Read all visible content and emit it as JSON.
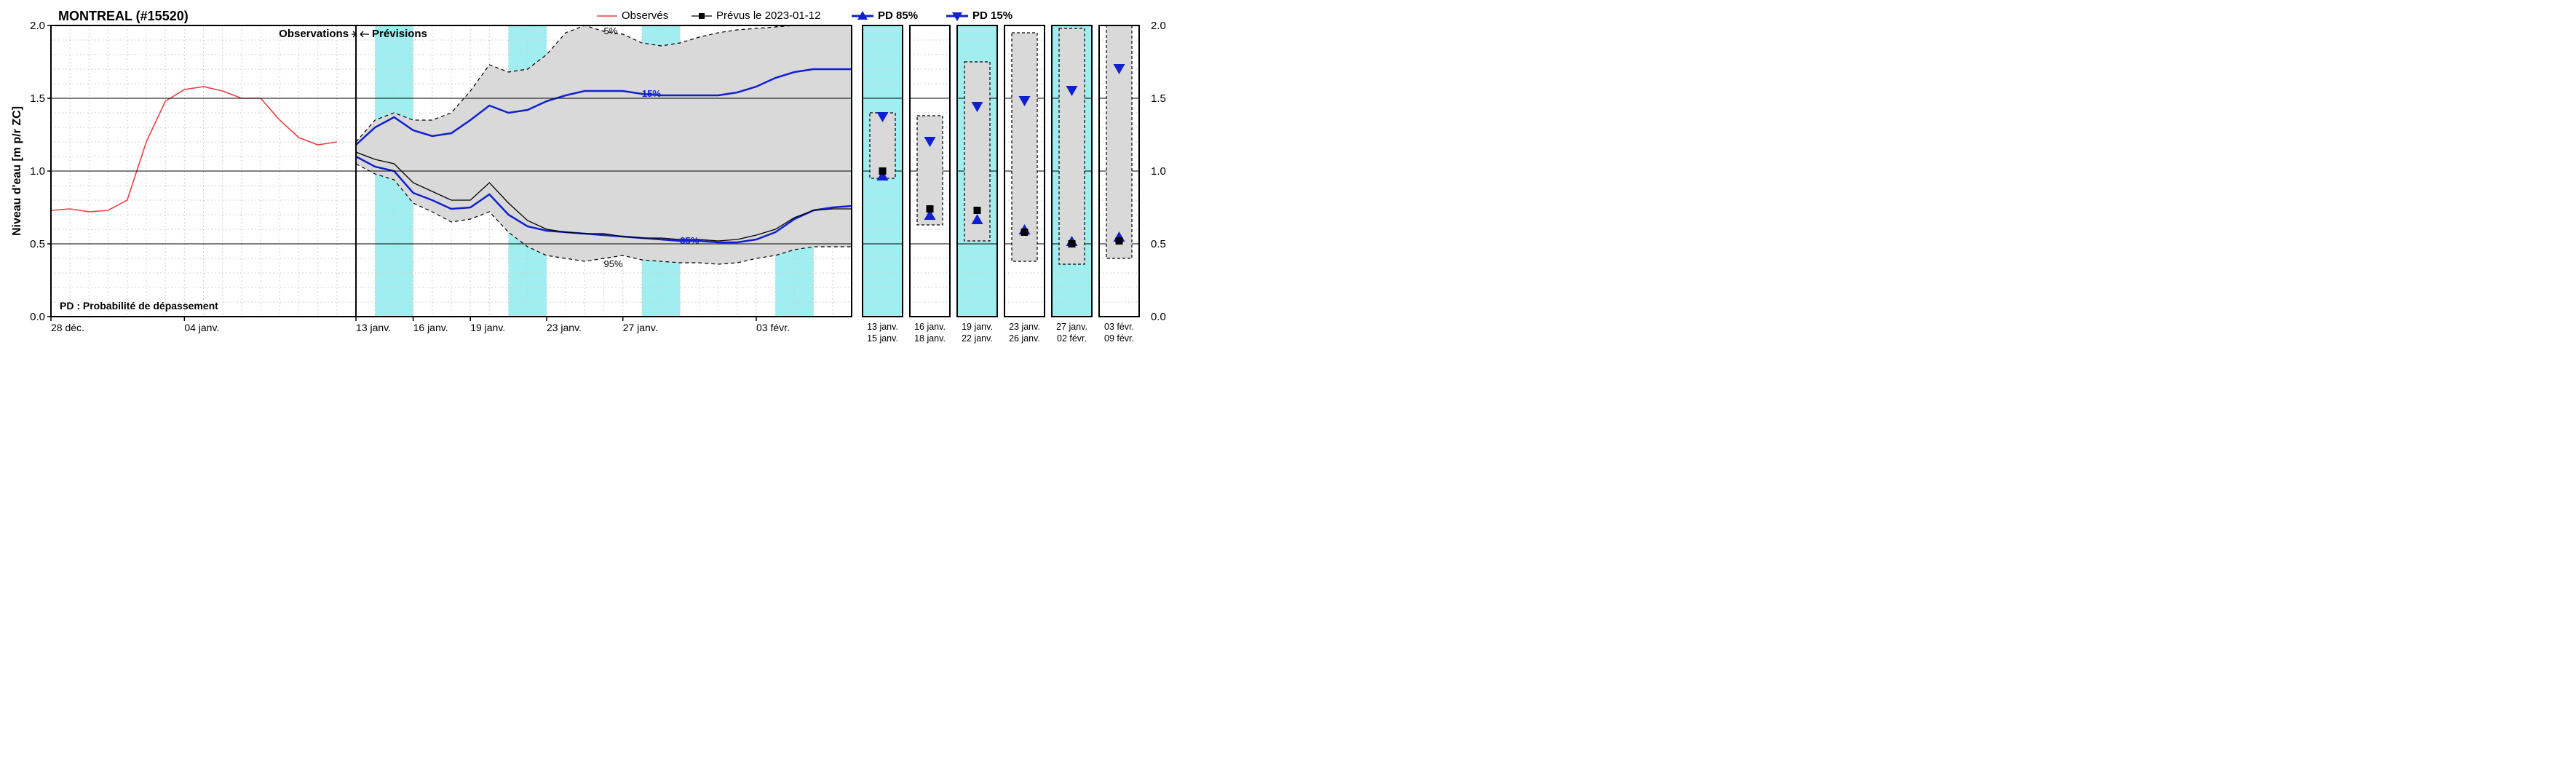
{
  "title": "MONTREAL (#15520)",
  "ylabel": "Niveau d'eau [m p/r ZC]",
  "annotation_obs": "Observations",
  "annotation_prev": "Prévisions",
  "pd_note": "PD : Probabilité de dépassement",
  "legend": {
    "observed": "Observés",
    "forecast": "Prévus le 2023-01-12",
    "pd85": "PD 85%",
    "pd15": "PD 15%"
  },
  "pct_labels": {
    "p5": "5%",
    "p15": "15%",
    "p85": "85%",
    "p95": "95%"
  },
  "main": {
    "type": "line",
    "x_domain": [
      0,
      42
    ],
    "x_divider": 16,
    "y_domain": [
      0.0,
      2.0
    ],
    "y_ticks": [
      0.0,
      0.5,
      1.0,
      1.5,
      2.0
    ],
    "y_minor_step": 0.1,
    "weekend_bands": [
      [
        17,
        19
      ],
      [
        24,
        26
      ],
      [
        31,
        33
      ],
      [
        38,
        40
      ]
    ],
    "x_ticks_major": [
      {
        "x": 0,
        "label": "28 déc."
      },
      {
        "x": 7,
        "label": "04 janv."
      },
      {
        "x": 16,
        "label": "13 janv."
      },
      {
        "x": 19,
        "label": "16 janv."
      },
      {
        "x": 22,
        "label": "19 janv."
      },
      {
        "x": 26,
        "label": "23 janv."
      },
      {
        "x": 30,
        "label": "27 janv."
      },
      {
        "x": 37,
        "label": "03 févr."
      }
    ],
    "x_minor_every": 1,
    "observed_color": "#e84142",
    "forecast_color": "#000000",
    "pd_color": "#1020d0",
    "fan_fill": "#d9d9d9",
    "fan_edge": "#000000",
    "weekend_fill": "#a0eef0",
    "minor_grid": "#d0d0d0",
    "major_grid": "#000000",
    "background": "#ffffff",
    "observed": [
      [
        0,
        0.73
      ],
      [
        1,
        0.74
      ],
      [
        2,
        0.72
      ],
      [
        3,
        0.73
      ],
      [
        4,
        0.8
      ],
      [
        5,
        1.2
      ],
      [
        6,
        1.48
      ],
      [
        7,
        1.56
      ],
      [
        8,
        1.58
      ],
      [
        9,
        1.55
      ],
      [
        10,
        1.5
      ],
      [
        11,
        1.5
      ],
      [
        12,
        1.35
      ],
      [
        13,
        1.23
      ],
      [
        14,
        1.18
      ],
      [
        15,
        1.2
      ]
    ],
    "forecast_median": [
      [
        16,
        1.13
      ],
      [
        17,
        1.08
      ],
      [
        18,
        1.05
      ],
      [
        19,
        0.92
      ],
      [
        20,
        0.86
      ],
      [
        21,
        0.8
      ],
      [
        22,
        0.8
      ],
      [
        23,
        0.92
      ],
      [
        24,
        0.78
      ],
      [
        25,
        0.66
      ],
      [
        26,
        0.6
      ],
      [
        27,
        0.58
      ],
      [
        28,
        0.57
      ],
      [
        29,
        0.57
      ],
      [
        30,
        0.55
      ],
      [
        31,
        0.54
      ],
      [
        32,
        0.54
      ],
      [
        33,
        0.53
      ],
      [
        34,
        0.53
      ],
      [
        35,
        0.52
      ],
      [
        36,
        0.53
      ],
      [
        37,
        0.56
      ],
      [
        38,
        0.6
      ],
      [
        39,
        0.68
      ],
      [
        40,
        0.73
      ],
      [
        41,
        0.74
      ],
      [
        42,
        0.74
      ]
    ],
    "p5": [
      [
        16,
        1.2
      ],
      [
        17,
        1.35
      ],
      [
        18,
        1.4
      ],
      [
        19,
        1.35
      ],
      [
        20,
        1.35
      ],
      [
        21,
        1.4
      ],
      [
        22,
        1.55
      ],
      [
        23,
        1.73
      ],
      [
        24,
        1.68
      ],
      [
        25,
        1.7
      ],
      [
        26,
        1.8
      ],
      [
        27,
        1.95
      ],
      [
        28,
        2.0
      ],
      [
        29,
        1.96
      ],
      [
        30,
        1.94
      ],
      [
        31,
        1.88
      ],
      [
        32,
        1.86
      ],
      [
        33,
        1.88
      ],
      [
        34,
        1.92
      ],
      [
        35,
        1.95
      ],
      [
        36,
        1.97
      ],
      [
        37,
        1.98
      ],
      [
        38,
        1.99
      ],
      [
        39,
        2.0
      ],
      [
        40,
        2.0
      ],
      [
        41,
        2.0
      ],
      [
        42,
        2.0
      ]
    ],
    "p15": [
      [
        16,
        1.18
      ],
      [
        17,
        1.3
      ],
      [
        18,
        1.37
      ],
      [
        19,
        1.28
      ],
      [
        20,
        1.24
      ],
      [
        21,
        1.26
      ],
      [
        22,
        1.35
      ],
      [
        23,
        1.45
      ],
      [
        24,
        1.4
      ],
      [
        25,
        1.42
      ],
      [
        26,
        1.48
      ],
      [
        27,
        1.52
      ],
      [
        28,
        1.55
      ],
      [
        29,
        1.55
      ],
      [
        30,
        1.55
      ],
      [
        31,
        1.53
      ],
      [
        32,
        1.52
      ],
      [
        33,
        1.52
      ],
      [
        34,
        1.52
      ],
      [
        35,
        1.52
      ],
      [
        36,
        1.54
      ],
      [
        37,
        1.58
      ],
      [
        38,
        1.64
      ],
      [
        39,
        1.68
      ],
      [
        40,
        1.7
      ],
      [
        41,
        1.7
      ],
      [
        42,
        1.7
      ]
    ],
    "p85": [
      [
        16,
        1.1
      ],
      [
        17,
        1.03
      ],
      [
        18,
        1.0
      ],
      [
        19,
        0.85
      ],
      [
        20,
        0.8
      ],
      [
        21,
        0.74
      ],
      [
        22,
        0.75
      ],
      [
        23,
        0.84
      ],
      [
        24,
        0.7
      ],
      [
        25,
        0.62
      ],
      [
        26,
        0.59
      ],
      [
        27,
        0.58
      ],
      [
        28,
        0.57
      ],
      [
        29,
        0.56
      ],
      [
        30,
        0.55
      ],
      [
        31,
        0.54
      ],
      [
        32,
        0.53
      ],
      [
        33,
        0.52
      ],
      [
        34,
        0.52
      ],
      [
        35,
        0.51
      ],
      [
        36,
        0.51
      ],
      [
        37,
        0.53
      ],
      [
        38,
        0.58
      ],
      [
        39,
        0.67
      ],
      [
        40,
        0.73
      ],
      [
        41,
        0.75
      ],
      [
        42,
        0.76
      ]
    ],
    "p95": [
      [
        16,
        1.05
      ],
      [
        17,
        0.98
      ],
      [
        18,
        0.94
      ],
      [
        19,
        0.78
      ],
      [
        20,
        0.72
      ],
      [
        21,
        0.65
      ],
      [
        22,
        0.67
      ],
      [
        23,
        0.72
      ],
      [
        24,
        0.58
      ],
      [
        25,
        0.48
      ],
      [
        26,
        0.42
      ],
      [
        27,
        0.4
      ],
      [
        28,
        0.38
      ],
      [
        29,
        0.4
      ],
      [
        30,
        0.42
      ],
      [
        31,
        0.39
      ],
      [
        32,
        0.38
      ],
      [
        33,
        0.37
      ],
      [
        34,
        0.37
      ],
      [
        35,
        0.36
      ],
      [
        36,
        0.37
      ],
      [
        37,
        0.4
      ],
      [
        38,
        0.42
      ],
      [
        39,
        0.46
      ],
      [
        40,
        0.48
      ],
      [
        41,
        0.48
      ],
      [
        42,
        0.48
      ]
    ]
  },
  "panels": [
    {
      "label_top": "13 janv.",
      "label_bot": "15 janv.",
      "weekend": true,
      "p5": 1.4,
      "p15": 1.37,
      "median": 1.0,
      "p85": 0.97,
      "p95": 0.95
    },
    {
      "label_top": "16 janv.",
      "label_bot": "18 janv.",
      "weekend": false,
      "p5": 1.38,
      "p15": 1.2,
      "median": 0.74,
      "p85": 0.7,
      "p95": 0.63
    },
    {
      "label_top": "19 janv.",
      "label_bot": "22 janv.",
      "weekend": true,
      "p5": 1.75,
      "p15": 1.44,
      "median": 0.73,
      "p85": 0.67,
      "p95": 0.52
    },
    {
      "label_top": "23 janv.",
      "label_bot": "26 janv.",
      "weekend": false,
      "p5": 1.95,
      "p15": 1.48,
      "median": 0.58,
      "p85": 0.6,
      "p95": 0.38
    },
    {
      "label_top": "27 janv.",
      "label_bot": "02 févr.",
      "weekend": true,
      "p5": 1.98,
      "p15": 1.55,
      "median": 0.5,
      "p85": 0.52,
      "p95": 0.36
    },
    {
      "label_top": "03 févr.",
      "label_bot": "09 févr.",
      "weekend": false,
      "p5": 2.0,
      "p15": 1.7,
      "median": 0.52,
      "p85": 0.55,
      "p95": 0.4
    }
  ],
  "panel_style": {
    "marker_up_color": "#1020d0",
    "marker_down_color": "#1020d0",
    "median_marker_color": "#000000",
    "box_edge": "#000000",
    "weekend_fill": "#a0eef0"
  }
}
